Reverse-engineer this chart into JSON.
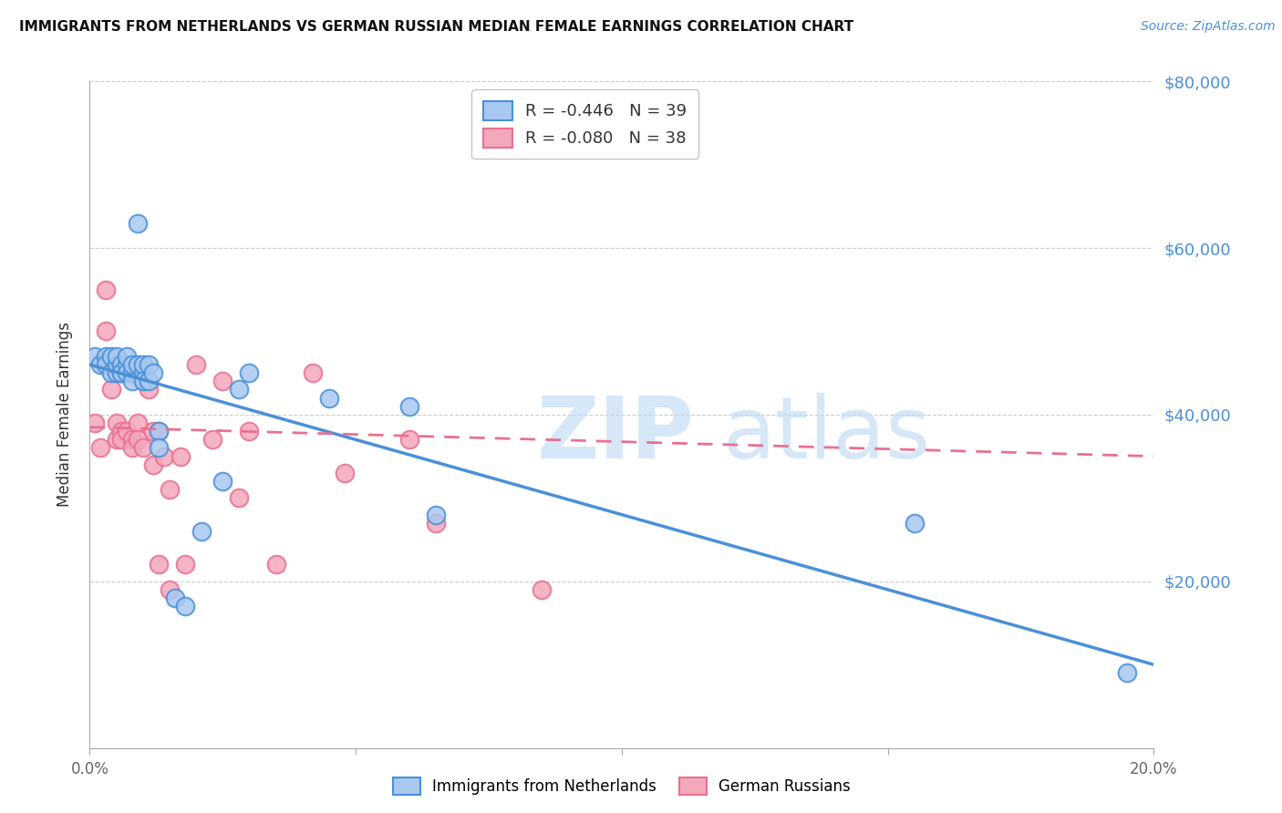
{
  "title": "IMMIGRANTS FROM NETHERLANDS VS GERMAN RUSSIAN MEDIAN FEMALE EARNINGS CORRELATION CHART",
  "source": "Source: ZipAtlas.com",
  "ylabel": "Median Female Earnings",
  "xmin": 0.0,
  "xmax": 0.2,
  "ymin": 0,
  "ymax": 80000,
  "yticks": [
    0,
    20000,
    40000,
    60000,
    80000
  ],
  "ytick_labels": [
    "",
    "$20,000",
    "$40,000",
    "$60,000",
    "$80,000"
  ],
  "xticks": [
    0.0,
    0.05,
    0.1,
    0.15,
    0.2
  ],
  "xtick_labels": [
    "0.0%",
    "",
    "",
    "",
    "20.0%"
  ],
  "blue_color": "#4a90d9",
  "pink_color": "#e87090",
  "blue_fill": "#a8c8f0",
  "pink_fill": "#f4a8bc",
  "blue_R_text": "R = ",
  "blue_R_val": "-0.446",
  "blue_N_text": "   N = 39",
  "pink_R_text": "R = ",
  "pink_R_val": "-0.080",
  "pink_N_text": "   N = 38",
  "legend_label_1": "R = -0.446   N = 39",
  "legend_label_2": "R = -0.080   N = 38",
  "bottom_label_1": "Immigrants from Netherlands",
  "bottom_label_2": "German Russians",
  "blue_line_x0": 0.0,
  "blue_line_y0": 46000,
  "blue_line_x1": 0.2,
  "blue_line_y1": 10000,
  "pink_line_x0": 0.0,
  "pink_line_y0": 38500,
  "pink_line_x1": 0.2,
  "pink_line_y1": 35000,
  "blue_points_x": [
    0.001,
    0.002,
    0.003,
    0.003,
    0.004,
    0.004,
    0.005,
    0.005,
    0.005,
    0.006,
    0.006,
    0.006,
    0.007,
    0.007,
    0.007,
    0.008,
    0.008,
    0.008,
    0.009,
    0.009,
    0.01,
    0.01,
    0.01,
    0.011,
    0.011,
    0.012,
    0.013,
    0.013,
    0.016,
    0.018,
    0.021,
    0.025,
    0.028,
    0.03,
    0.045,
    0.06,
    0.065,
    0.155,
    0.195
  ],
  "blue_points_y": [
    47000,
    46000,
    47000,
    46000,
    45000,
    47000,
    45000,
    46000,
    47000,
    45000,
    46000,
    45000,
    46000,
    45000,
    47000,
    45000,
    44000,
    46000,
    63000,
    46000,
    45000,
    46000,
    44000,
    46000,
    44000,
    45000,
    38000,
    36000,
    18000,
    17000,
    26000,
    32000,
    43000,
    45000,
    42000,
    41000,
    28000,
    27000,
    9000
  ],
  "pink_points_x": [
    0.001,
    0.002,
    0.003,
    0.003,
    0.004,
    0.005,
    0.005,
    0.006,
    0.006,
    0.007,
    0.007,
    0.008,
    0.008,
    0.009,
    0.009,
    0.01,
    0.01,
    0.011,
    0.012,
    0.012,
    0.013,
    0.013,
    0.014,
    0.015,
    0.015,
    0.017,
    0.018,
    0.02,
    0.023,
    0.025,
    0.028,
    0.03,
    0.035,
    0.042,
    0.048,
    0.06,
    0.065,
    0.085
  ],
  "pink_points_y": [
    39000,
    36000,
    55000,
    50000,
    43000,
    39000,
    37000,
    38000,
    37000,
    45000,
    38000,
    37000,
    36000,
    39000,
    37000,
    44000,
    36000,
    43000,
    34000,
    38000,
    38000,
    22000,
    35000,
    31000,
    19000,
    35000,
    22000,
    46000,
    37000,
    44000,
    30000,
    38000,
    22000,
    45000,
    33000,
    37000,
    27000,
    19000
  ]
}
